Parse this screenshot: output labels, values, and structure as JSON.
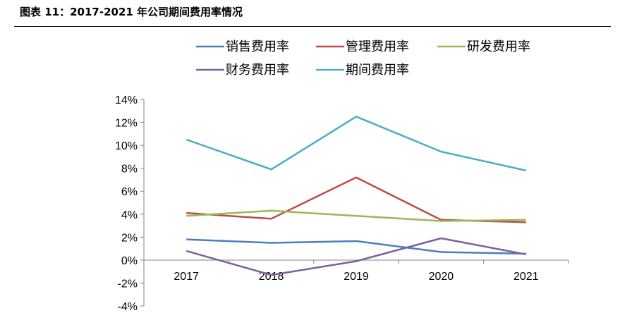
{
  "caption": "图表 11：2017-2021 年公司期间费用率情况",
  "chart_data": {
    "type": "line",
    "x": [
      "2017",
      "2018",
      "2019",
      "2020",
      "2021"
    ],
    "ylim": [
      -4,
      14
    ],
    "yticks": [
      -4,
      -2,
      0,
      2,
      4,
      6,
      8,
      10,
      12,
      14
    ],
    "ytick_labels": [
      "-4%",
      "-2%",
      "0%",
      "2%",
      "4%",
      "6%",
      "8%",
      "10%",
      "12%",
      "14%"
    ],
    "grid": false,
    "legend_position": "top",
    "series": [
      {
        "name": "销售费用率",
        "color": "#4a7ebb",
        "values": [
          1.8,
          1.5,
          1.65,
          0.7,
          0.55
        ]
      },
      {
        "name": "管理费用率",
        "color": "#be4b48",
        "values": [
          4.1,
          3.6,
          7.2,
          3.5,
          3.3
        ]
      },
      {
        "name": "研发费用率",
        "color": "#98b954",
        "values": [
          3.85,
          4.3,
          3.85,
          3.4,
          3.5
        ]
      },
      {
        "name": "财务费用率",
        "color": "#7d60a0",
        "values": [
          0.8,
          -1.3,
          -0.1,
          1.9,
          0.5
        ]
      },
      {
        "name": "期间费用率",
        "color": "#4bacc6",
        "values": [
          10.5,
          7.9,
          12.5,
          9.45,
          7.8
        ]
      }
    ]
  }
}
